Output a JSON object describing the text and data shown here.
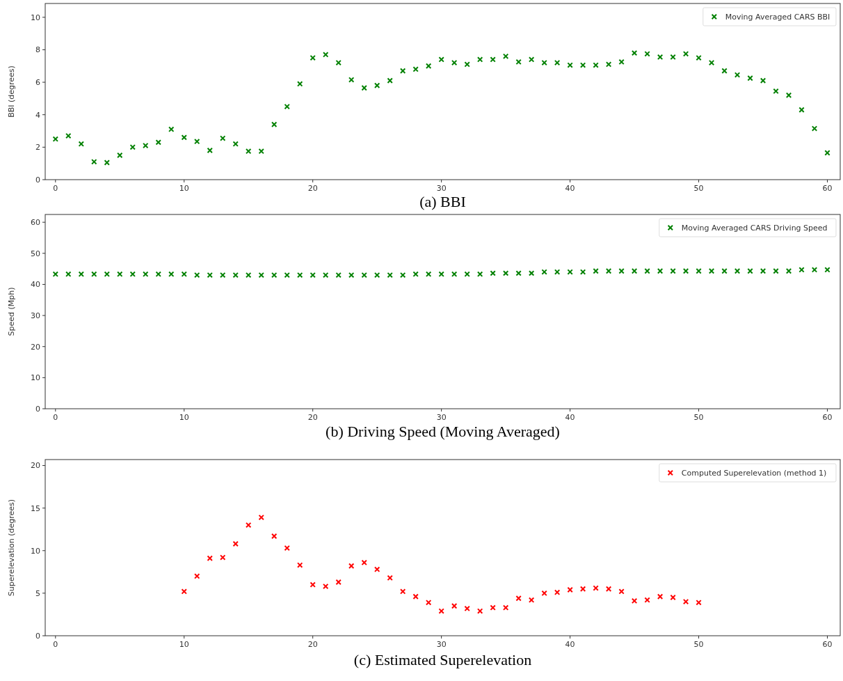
{
  "chart_data": [
    {
      "type": "scatter",
      "title": "(a) BBI",
      "ylabel": "BBI (degrees)",
      "x": [
        0,
        1,
        2,
        3,
        4,
        5,
        6,
        7,
        8,
        9,
        10,
        11,
        12,
        13,
        14,
        15,
        16,
        17,
        18,
        19,
        20,
        21,
        22,
        23,
        24,
        25,
        26,
        27,
        28,
        29,
        30,
        31,
        32,
        33,
        34,
        35,
        36,
        37,
        38,
        39,
        40,
        41,
        42,
        43,
        44,
        45,
        46,
        47,
        48,
        49,
        50,
        51,
        52,
        53,
        54,
        55,
        56,
        57,
        58,
        59,
        60
      ],
      "series": [
        {
          "name": "Moving Averaged CARS BBI",
          "color": "#008000",
          "values": [
            2.5,
            2.7,
            2.2,
            1.1,
            1.05,
            1.5,
            2.0,
            2.1,
            2.3,
            3.1,
            2.6,
            2.35,
            1.8,
            2.55,
            2.2,
            1.75,
            1.75,
            3.4,
            4.5,
            5.9,
            7.5,
            7.7,
            7.2,
            6.15,
            5.65,
            5.8,
            6.1,
            6.7,
            6.8,
            7.0,
            7.4,
            7.2,
            7.1,
            7.4,
            7.4,
            7.6,
            7.25,
            7.4,
            7.2,
            7.2,
            7.05,
            7.05,
            7.05,
            7.1,
            7.25,
            7.8,
            7.75,
            7.55,
            7.55,
            7.75,
            7.5,
            7.2,
            6.7,
            6.45,
            6.25,
            6.1,
            5.45,
            5.2,
            4.3,
            3.15,
            1.65
          ]
        }
      ],
      "xlim": [
        -0.8,
        61
      ],
      "xticks": [
        0,
        10,
        20,
        30,
        40,
        50,
        60
      ],
      "ylim": [
        0,
        10.85
      ],
      "yticks": [
        0,
        2,
        4,
        6,
        8,
        10
      ],
      "marker": "cross",
      "legend": "top right",
      "grid": false
    },
    {
      "type": "scatter",
      "title": "(b) Driving Speed (Moving Averaged)",
      "ylabel": "Speed (Mph)",
      "x": [
        0,
        1,
        2,
        3,
        4,
        5,
        6,
        7,
        8,
        9,
        10,
        11,
        12,
        13,
        14,
        15,
        16,
        17,
        18,
        19,
        20,
        21,
        22,
        23,
        24,
        25,
        26,
        27,
        28,
        29,
        30,
        31,
        32,
        33,
        34,
        35,
        36,
        37,
        38,
        39,
        40,
        41,
        42,
        43,
        44,
        45,
        46,
        47,
        48,
        49,
        50,
        51,
        52,
        53,
        54,
        55,
        56,
        57,
        58,
        59,
        60
      ],
      "series": [
        {
          "name": "Moving Averaged CARS Driving Speed",
          "color": "#008000",
          "values": [
            43.3,
            43.3,
            43.3,
            43.3,
            43.3,
            43.3,
            43.3,
            43.3,
            43.3,
            43.3,
            43.3,
            43,
            43,
            43,
            43,
            43,
            43,
            43,
            43,
            43,
            43,
            43,
            43,
            43,
            43,
            43,
            43,
            43,
            43.3,
            43.3,
            43.3,
            43.3,
            43.3,
            43.3,
            43.6,
            43.6,
            43.6,
            43.6,
            44,
            44,
            44,
            44,
            44.3,
            44.3,
            44.3,
            44.3,
            44.3,
            44.3,
            44.3,
            44.3,
            44.3,
            44.3,
            44.3,
            44.3,
            44.3,
            44.3,
            44.3,
            44.3,
            44.7,
            44.7,
            44.7
          ]
        }
      ],
      "xlim": [
        -0.8,
        61
      ],
      "xticks": [
        0,
        10,
        20,
        30,
        40,
        50,
        60
      ],
      "ylim": [
        0,
        62.5
      ],
      "yticks": [
        0,
        10,
        20,
        30,
        40,
        50,
        60
      ],
      "marker": "cross",
      "legend": "top right",
      "grid": false
    },
    {
      "type": "scatter",
      "title": "(c) Estimated Superelevation",
      "ylabel": "Superelevation (degrees)",
      "x": [
        10,
        11,
        12,
        13,
        14,
        15,
        16,
        17,
        18,
        19,
        20,
        21,
        22,
        23,
        24,
        25,
        26,
        27,
        28,
        29,
        30,
        31,
        32,
        33,
        34,
        35,
        36,
        37,
        38,
        39,
        40,
        41,
        42,
        43,
        44,
        45,
        46,
        47,
        48,
        49,
        50
      ],
      "series": [
        {
          "name": "Computed Superelevation (method 1)",
          "color": "#ff0000",
          "values": [
            5.2,
            7.0,
            9.1,
            9.2,
            10.8,
            13.0,
            13.9,
            11.7,
            10.3,
            8.3,
            6.0,
            5.8,
            6.3,
            8.2,
            8.6,
            7.8,
            6.8,
            5.2,
            4.6,
            3.9,
            2.9,
            3.5,
            3.2,
            2.9,
            3.3,
            3.3,
            4.4,
            4.2,
            5.0,
            5.1,
            5.4,
            5.5,
            5.6,
            5.5,
            5.2,
            4.1,
            4.2,
            4.6,
            4.5,
            4.0,
            3.9
          ]
        }
      ],
      "xlim": [
        -0.8,
        61
      ],
      "xticks": [
        0,
        10,
        20,
        30,
        40,
        50,
        60
      ],
      "ylim": [
        0,
        20.7
      ],
      "yticks": [
        0,
        5,
        10,
        15,
        20
      ],
      "marker": "cross",
      "legend": "top right",
      "grid": false
    }
  ]
}
